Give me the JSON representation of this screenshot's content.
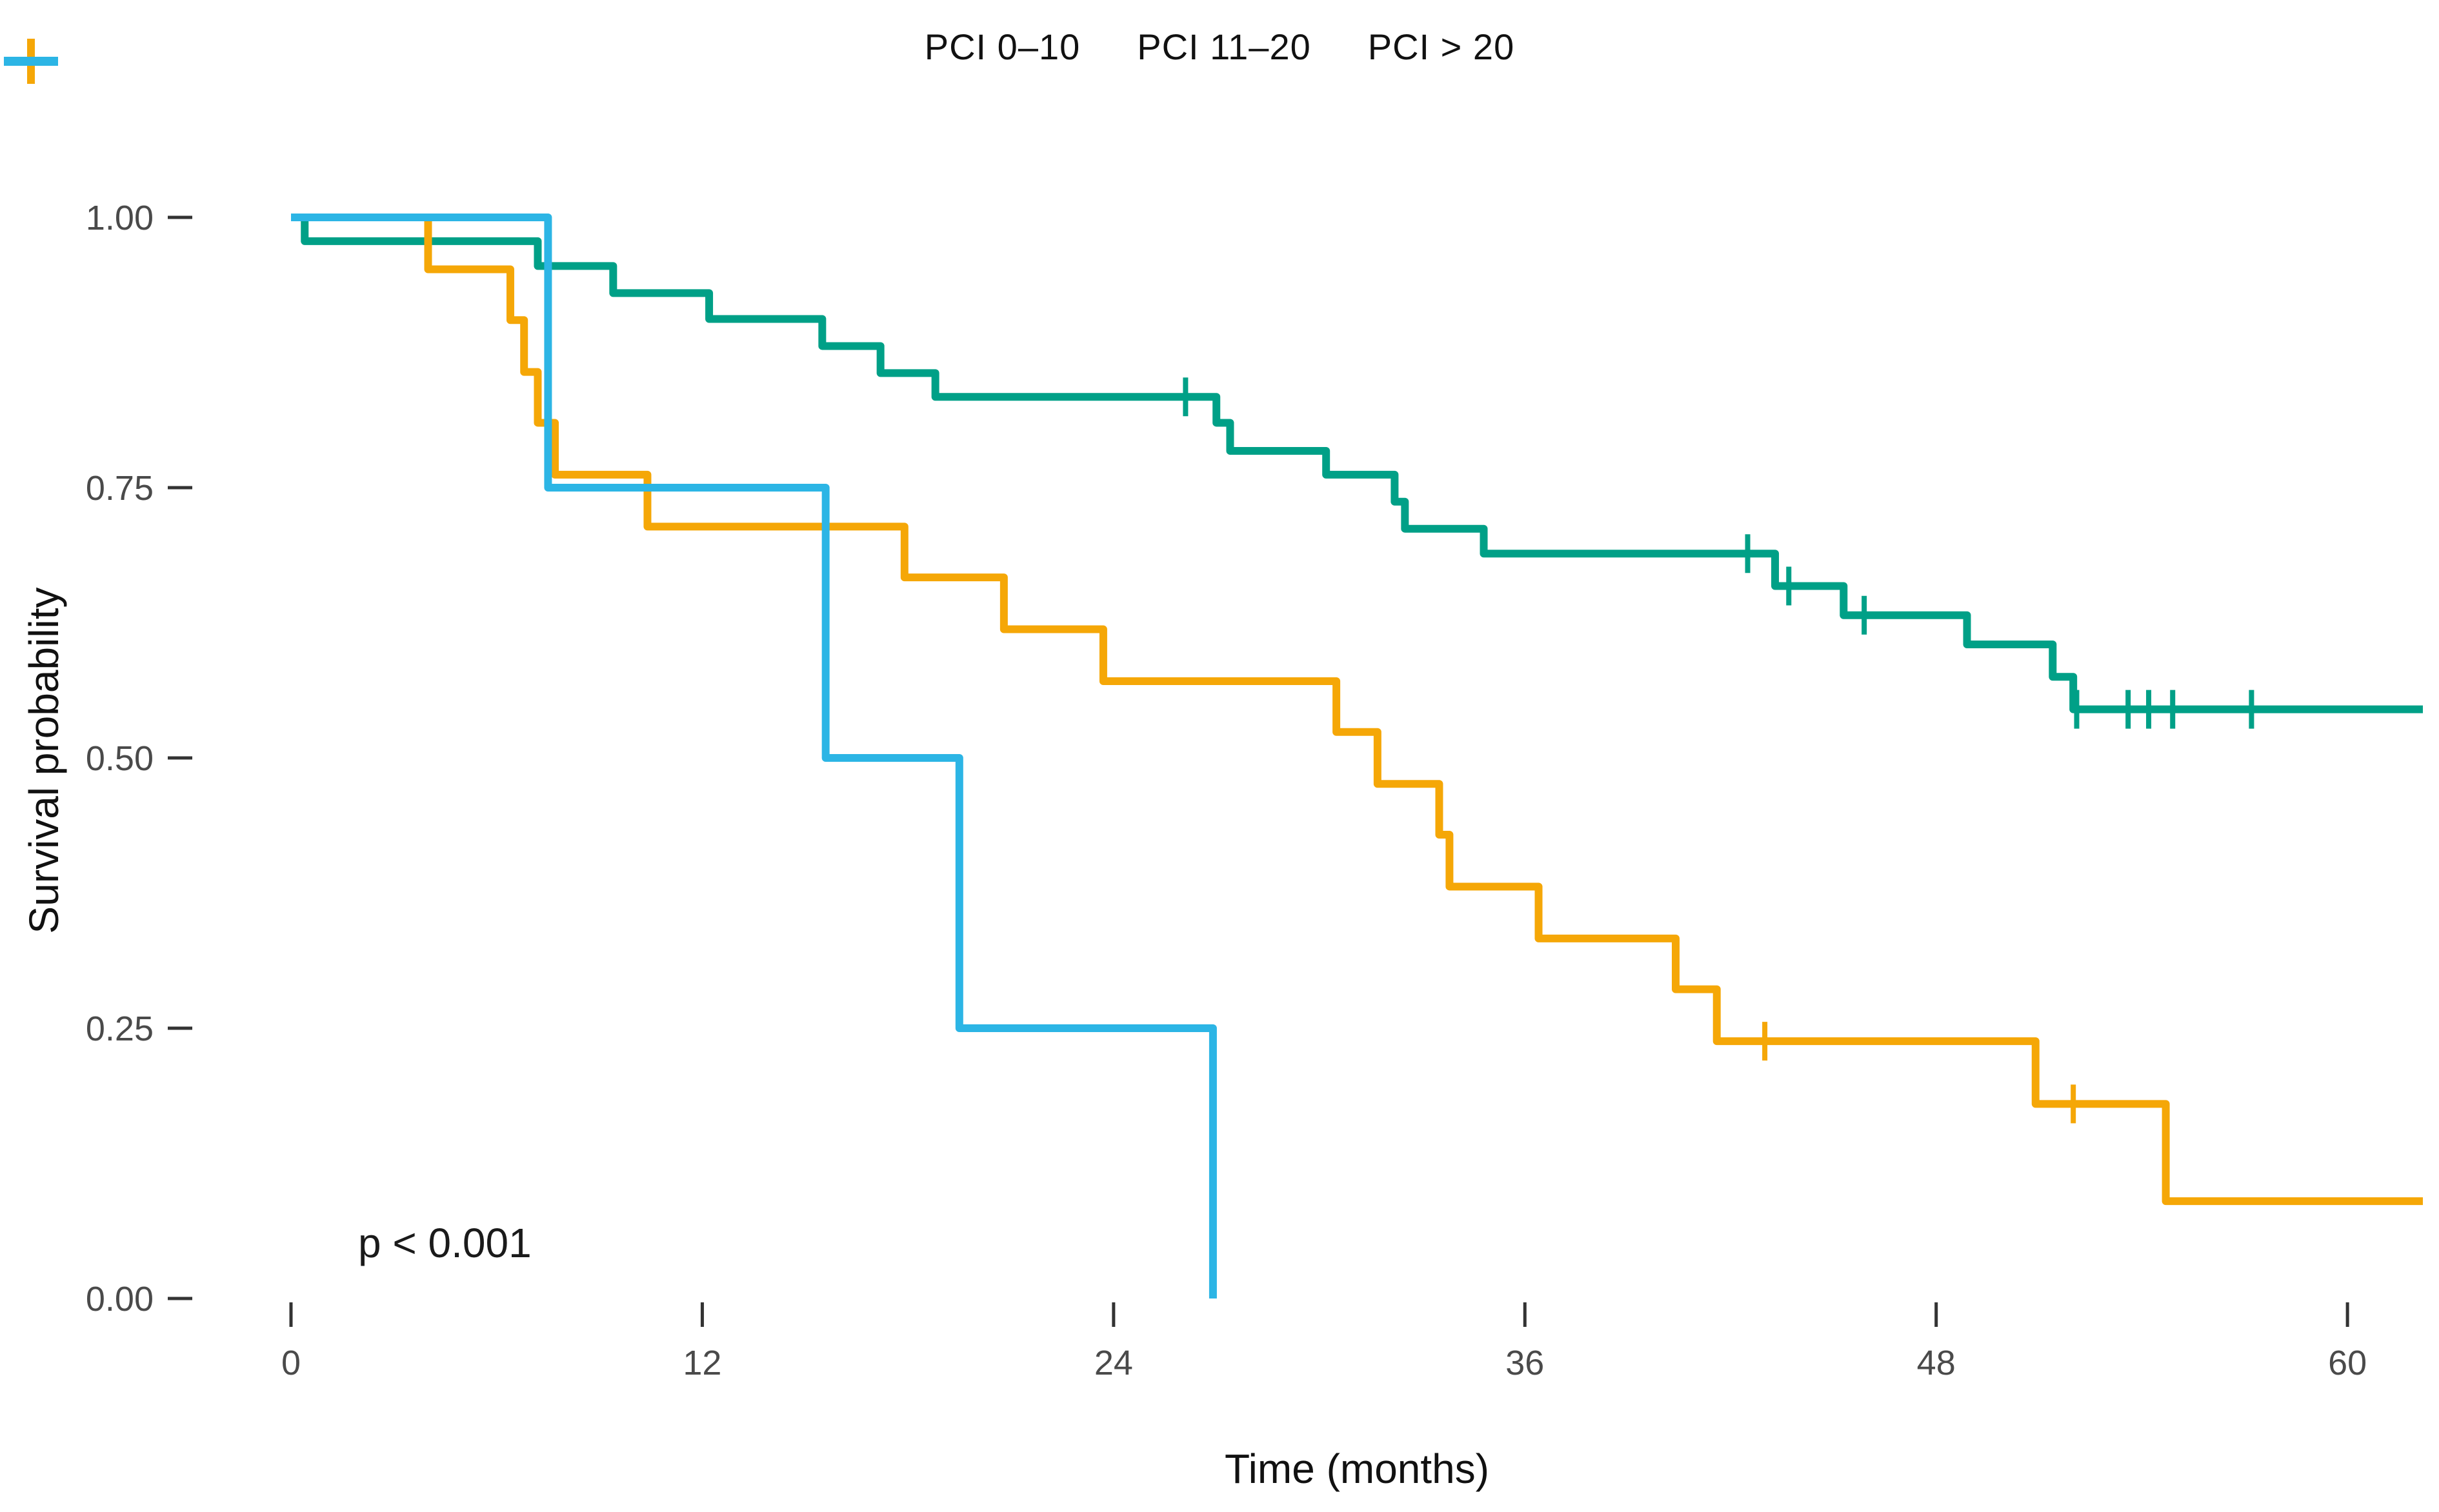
{
  "chart_data": {
    "type": "line",
    "subtype": "kaplan-meier-step",
    "title": "",
    "xlabel": "Time (months)",
    "ylabel": "Survival probability",
    "p_value": "p < 0.001",
    "xlim": [
      0,
      62.2
    ],
    "ylim": [
      0,
      1
    ],
    "x_ticks": [
      0,
      12,
      24,
      36,
      48,
      60
    ],
    "y_ticks": [
      {
        "v": 0.0,
        "label": "0.00"
      },
      {
        "v": 0.25,
        "label": "0.25"
      },
      {
        "v": 0.5,
        "label": "0.50"
      },
      {
        "v": 0.75,
        "label": "0.75"
      },
      {
        "v": 1.0,
        "label": "1.00"
      }
    ],
    "grid": false,
    "legend_position": "top",
    "series": [
      {
        "name": "PCI 0–10",
        "color": "#00A087",
        "marker": "plus",
        "end": 62.2,
        "steps": [
          [
            0,
            1.0
          ],
          [
            0.4,
            0.978
          ],
          [
            7.2,
            0.955
          ],
          [
            9.4,
            0.93
          ],
          [
            12.2,
            0.906
          ],
          [
            15.5,
            0.881
          ],
          [
            17.2,
            0.856
          ],
          [
            18.8,
            0.834
          ],
          [
            27.0,
            0.81
          ],
          [
            27.4,
            0.784
          ],
          [
            30.2,
            0.762
          ],
          [
            32.2,
            0.737
          ],
          [
            32.5,
            0.712
          ],
          [
            34.8,
            0.689
          ],
          [
            43.3,
            0.659
          ],
          [
            45.3,
            0.632
          ],
          [
            48.9,
            0.605
          ],
          [
            51.4,
            0.575
          ],
          [
            52.0,
            0.545
          ]
        ],
        "censors": [
          [
            26.1,
            0.834
          ],
          [
            42.5,
            0.689
          ],
          [
            43.7,
            0.659
          ],
          [
            45.9,
            0.632
          ],
          [
            52.1,
            0.545
          ],
          [
            53.6,
            0.545
          ],
          [
            54.2,
            0.545
          ],
          [
            54.9,
            0.545
          ],
          [
            57.2,
            0.545
          ]
        ]
      },
      {
        "name": "PCI 11–20",
        "color": "#F5A707",
        "marker": "plus",
        "end": 62.2,
        "steps": [
          [
            0,
            1.0
          ],
          [
            4.0,
            0.952
          ],
          [
            6.4,
            0.905
          ],
          [
            6.8,
            0.857
          ],
          [
            7.2,
            0.81
          ],
          [
            7.7,
            0.762
          ],
          [
            10.4,
            0.714
          ],
          [
            17.9,
            0.667
          ],
          [
            20.8,
            0.619
          ],
          [
            23.7,
            0.571
          ],
          [
            30.5,
            0.524
          ],
          [
            31.7,
            0.476
          ],
          [
            33.5,
            0.429
          ],
          [
            33.8,
            0.381
          ],
          [
            36.4,
            0.333
          ],
          [
            40.4,
            0.286
          ],
          [
            41.6,
            0.238
          ],
          [
            50.9,
            0.18
          ],
          [
            54.7,
            0.09
          ]
        ],
        "censors": [
          [
            43.0,
            0.238
          ],
          [
            52.0,
            0.18
          ]
        ]
      },
      {
        "name": "PCI > 20",
        "color": "#2CB5E5",
        "marker": "line",
        "end": 26.9,
        "steps": [
          [
            0,
            1.0
          ],
          [
            7.5,
            0.75
          ],
          [
            15.6,
            0.5
          ],
          [
            19.5,
            0.25
          ],
          [
            26.9,
            0.0
          ]
        ],
        "censors": []
      }
    ]
  }
}
